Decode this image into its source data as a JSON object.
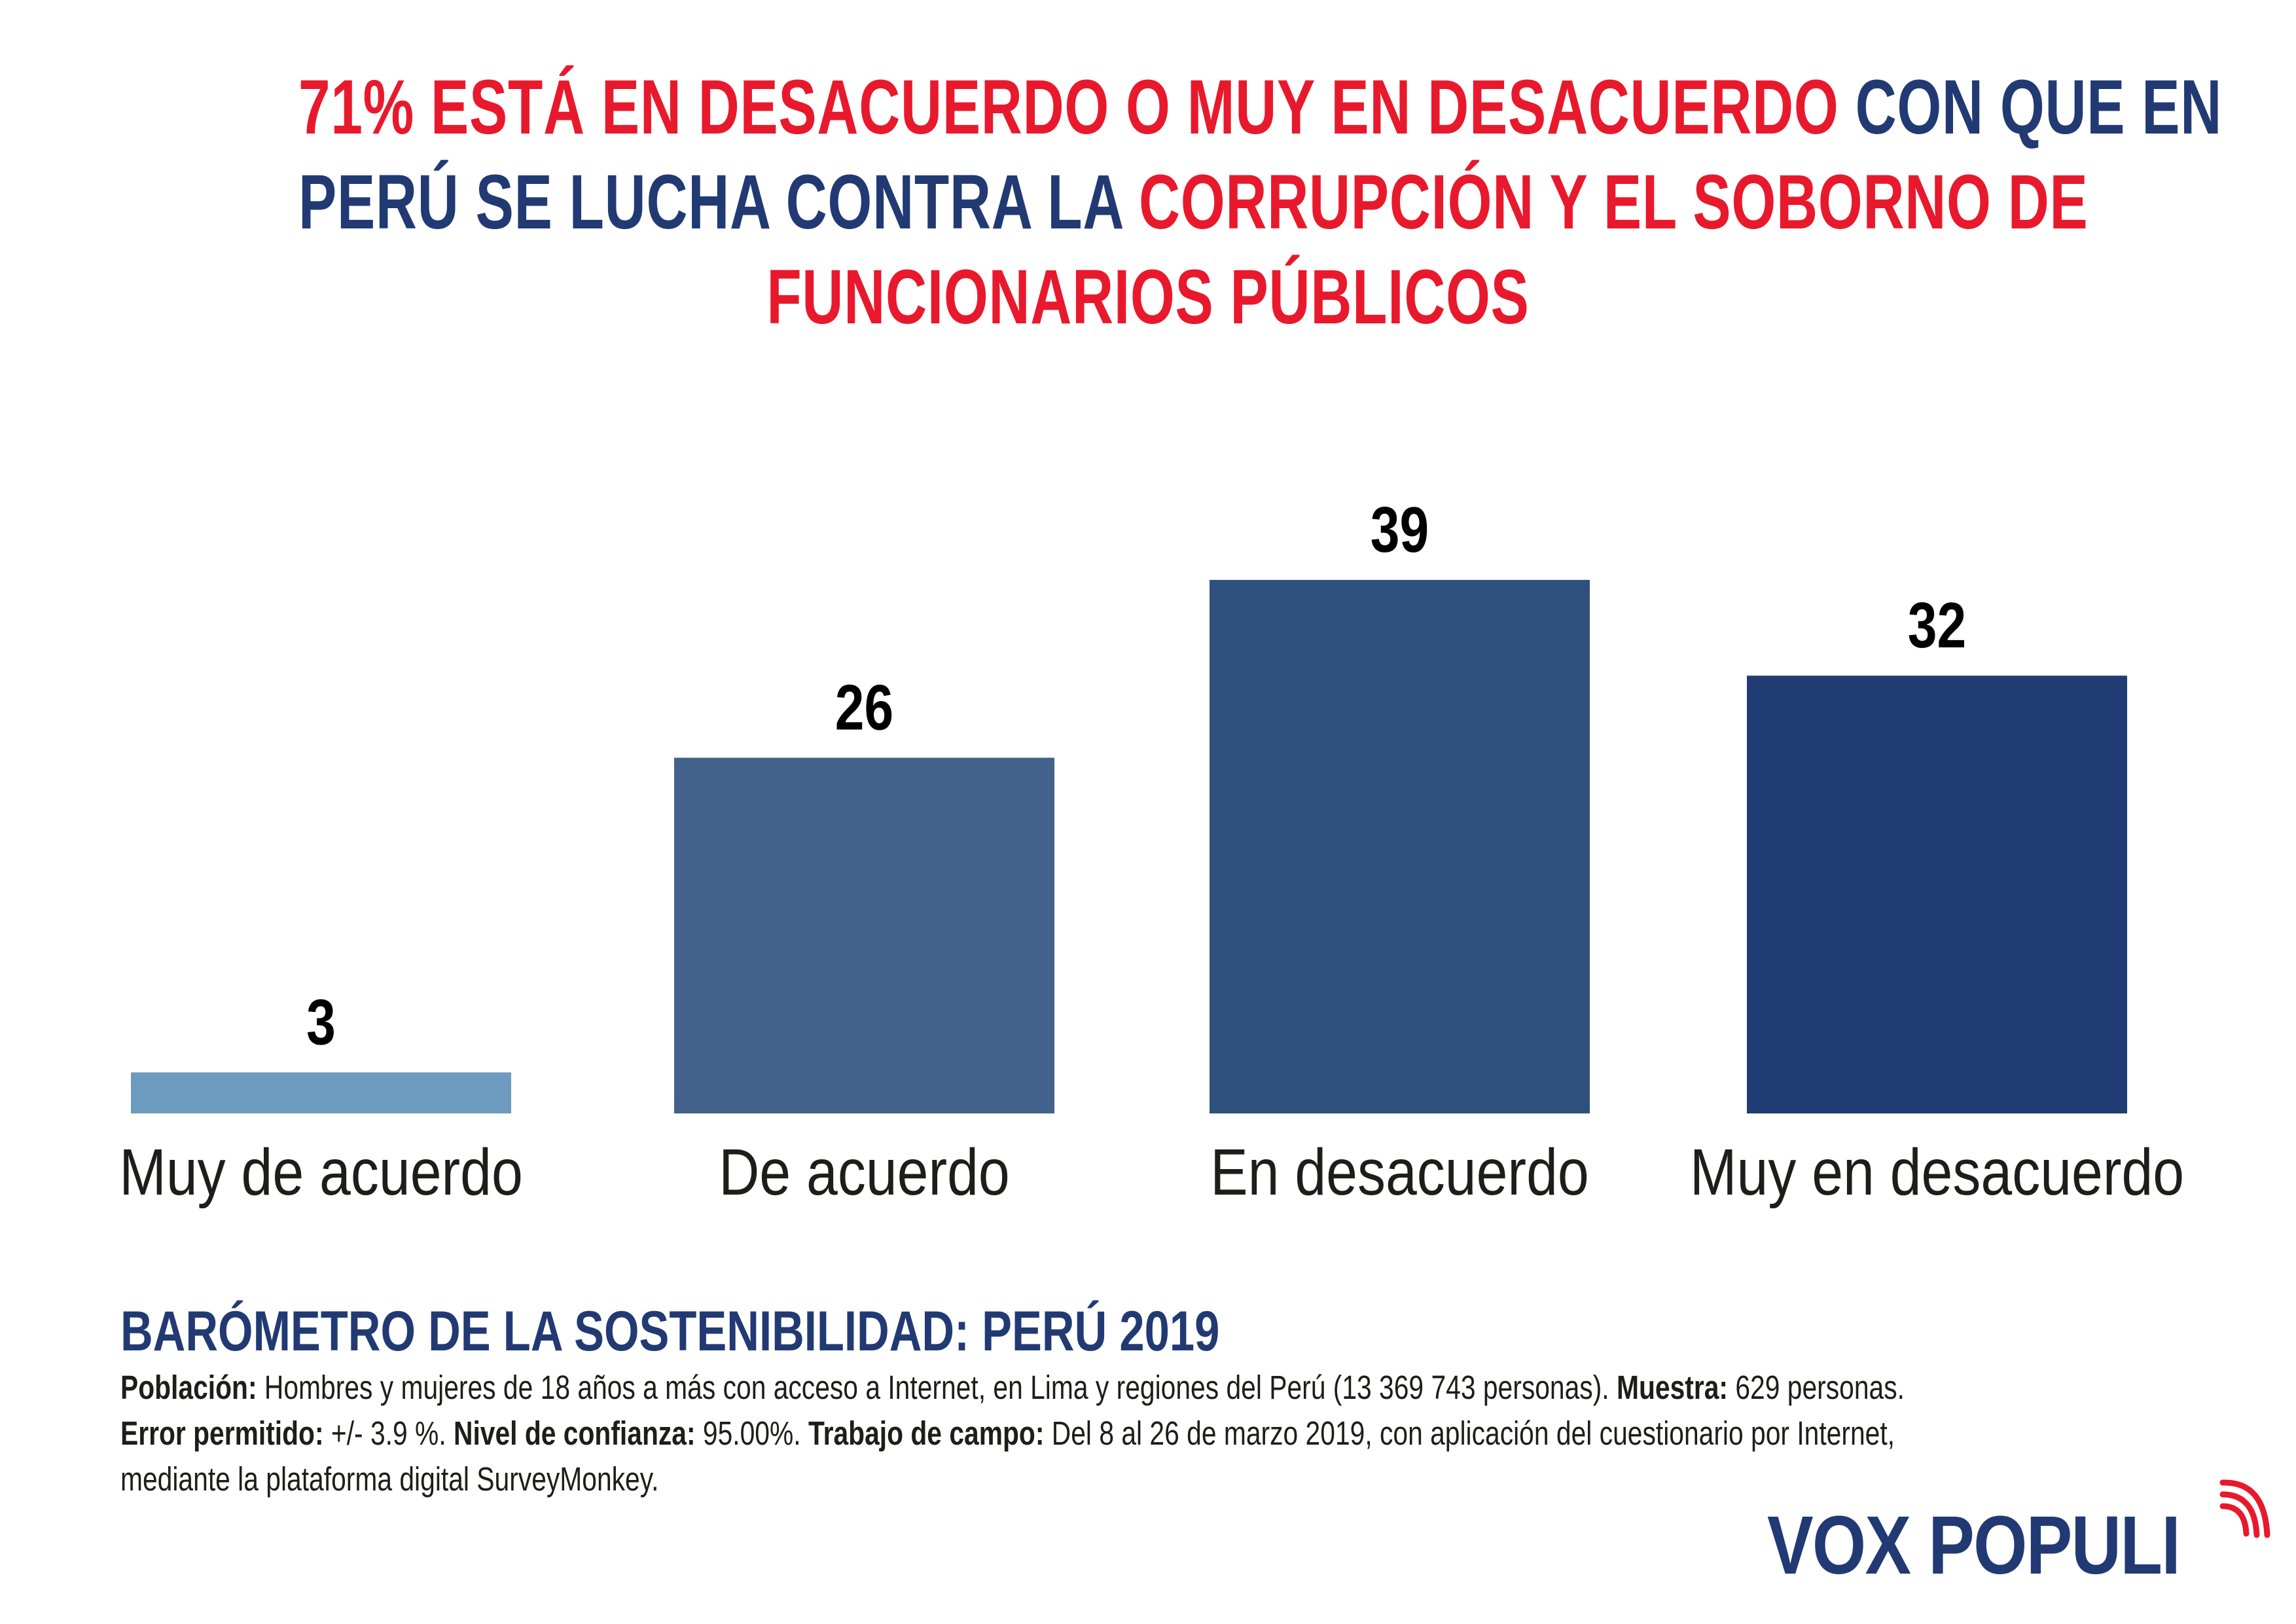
{
  "title": {
    "lines": [
      [
        {
          "text": "71% ESTÁ EN DESACUERDO O MUY EN DESACUERDO ",
          "color": "red"
        },
        {
          "text": "CON QUE EN",
          "color": "navy"
        }
      ],
      [
        {
          "text": "PERÚ SE LUCHA CONTRA LA ",
          "color": "navy"
        },
        {
          "text": "CORRUPCIÓN Y EL SOBORNO DE",
          "color": "red"
        }
      ],
      [
        {
          "text": "FUNCIONARIOS PÚBLICOS",
          "color": "red"
        }
      ]
    ]
  },
  "colors": {
    "red": "#e8192c",
    "navy": "#213a74"
  },
  "chart_data": {
    "type": "bar",
    "title": "71% ESTÁ EN DESACUERDO O MUY EN DESACUERDO CON QUE EN PERÚ SE LUCHA CONTRA LA CORRUPCIÓN Y EL SOBORNO DE FUNCIONARIOS PÚBLICOS",
    "xlabel": "",
    "ylabel": "",
    "unit": "%",
    "categories": [
      "Muy de acuerdo",
      "De acuerdo",
      "En desacuerdo",
      "Muy en desacuerdo"
    ],
    "values": [
      3,
      26,
      39,
      32
    ],
    "bar_colors": [
      "#6d9abf",
      "#42618b",
      "#2f507d",
      "#213b73"
    ],
    "data_labels": [
      "3",
      "26",
      "39",
      "32"
    ],
    "ylim": [
      0,
      39
    ],
    "grid": false,
    "axes_visible": false,
    "legend": "none"
  },
  "footer": {
    "heading": "BARÓMETRO DE LA SOSTENIBILIDAD: PERÚ 2019",
    "lines": [
      [
        {
          "bold": true,
          "text": "Población:"
        },
        {
          "bold": false,
          "text": " Hombres y mujeres de 18 años a más con acceso a Internet, en Lima y regiones del Perú (13 369 743 personas). "
        },
        {
          "bold": true,
          "text": "Muestra:"
        },
        {
          "bold": false,
          "text": " 629 personas."
        }
      ],
      [
        {
          "bold": true,
          "text": "Error permitido:"
        },
        {
          "bold": false,
          "text": " +/- 3.9 %. "
        },
        {
          "bold": true,
          "text": "Nivel de confianza:"
        },
        {
          "bold": false,
          "text": " 95.00%. "
        },
        {
          "bold": true,
          "text": "Trabajo de campo:"
        },
        {
          "bold": false,
          "text": " Del 8 al 26 de marzo 2019, con aplicación del cuestionario por Internet,"
        }
      ],
      [
        {
          "bold": false,
          "text": "mediante la plataforma digital SurveyMonkey."
        }
      ]
    ]
  },
  "logo": {
    "text": "VOX POPULI",
    "icon": "signal-waves-icon"
  }
}
